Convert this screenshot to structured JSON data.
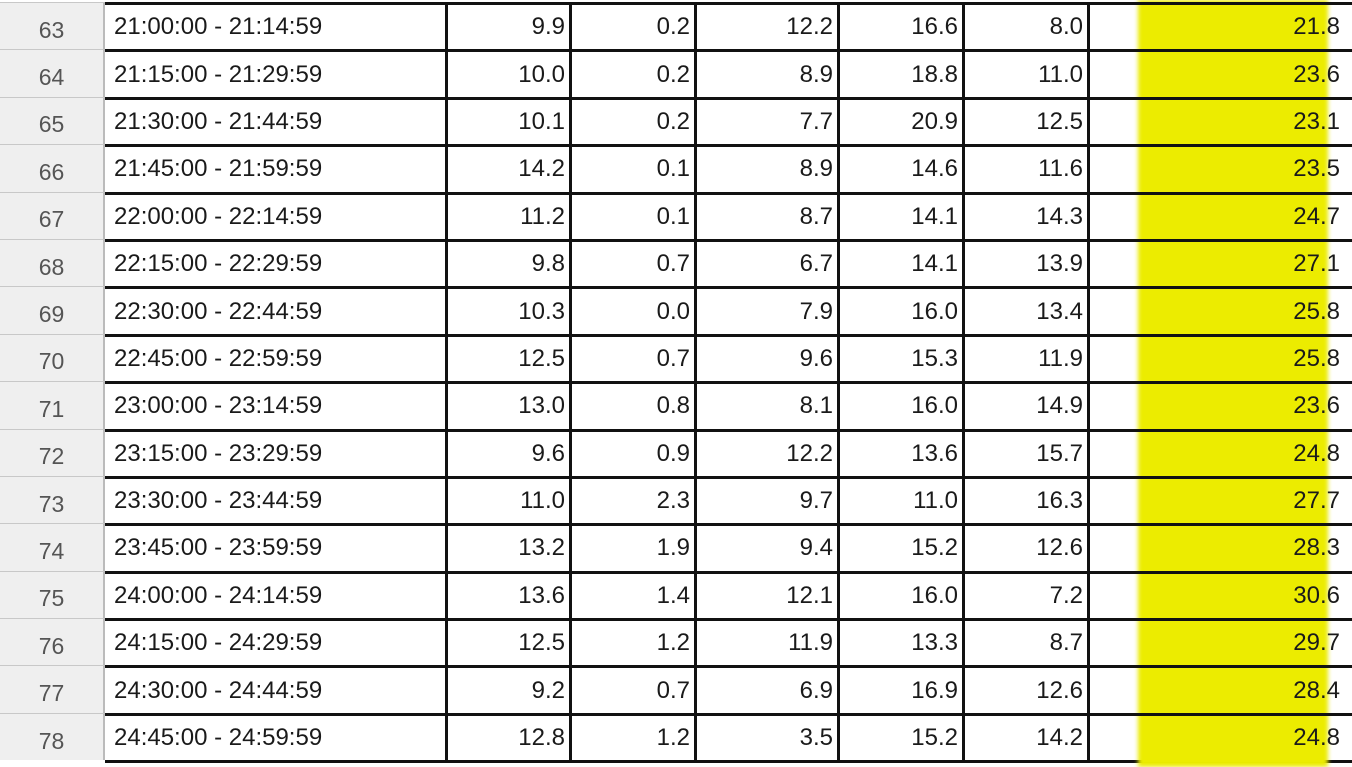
{
  "highlight_color": "#ecec00",
  "highlighted_column": 7,
  "rows": [
    {
      "num": "63",
      "time": "21:00:00 - 21:14:59",
      "v": [
        "9.9",
        "0.2",
        "12.2",
        "16.6",
        "8.0",
        "21.8"
      ]
    },
    {
      "num": "64",
      "time": "21:15:00 - 21:29:59",
      "v": [
        "10.0",
        "0.2",
        "8.9",
        "18.8",
        "11.0",
        "23.6"
      ]
    },
    {
      "num": "65",
      "time": "21:30:00 - 21:44:59",
      "v": [
        "10.1",
        "0.2",
        "7.7",
        "20.9",
        "12.5",
        "23.1"
      ]
    },
    {
      "num": "66",
      "time": "21:45:00 - 21:59:59",
      "v": [
        "14.2",
        "0.1",
        "8.9",
        "14.6",
        "11.6",
        "23.5"
      ]
    },
    {
      "num": "67",
      "time": "22:00:00 - 22:14:59",
      "v": [
        "11.2",
        "0.1",
        "8.7",
        "14.1",
        "14.3",
        "24.7"
      ]
    },
    {
      "num": "68",
      "time": "22:15:00 - 22:29:59",
      "v": [
        "9.8",
        "0.7",
        "6.7",
        "14.1",
        "13.9",
        "27.1"
      ]
    },
    {
      "num": "69",
      "time": "22:30:00 - 22:44:59",
      "v": [
        "10.3",
        "0.0",
        "7.9",
        "16.0",
        "13.4",
        "25.8"
      ]
    },
    {
      "num": "70",
      "time": "22:45:00 - 22:59:59",
      "v": [
        "12.5",
        "0.7",
        "9.6",
        "15.3",
        "11.9",
        "25.8"
      ]
    },
    {
      "num": "71",
      "time": "23:00:00 - 23:14:59",
      "v": [
        "13.0",
        "0.8",
        "8.1",
        "16.0",
        "14.9",
        "23.6"
      ]
    },
    {
      "num": "72",
      "time": "23:15:00 - 23:29:59",
      "v": [
        "9.6",
        "0.9",
        "12.2",
        "13.6",
        "15.7",
        "24.8"
      ]
    },
    {
      "num": "73",
      "time": "23:30:00 - 23:44:59",
      "v": [
        "11.0",
        "2.3",
        "9.7",
        "11.0",
        "16.3",
        "27.7"
      ]
    },
    {
      "num": "74",
      "time": "23:45:00 - 23:59:59",
      "v": [
        "13.2",
        "1.9",
        "9.4",
        "15.2",
        "12.6",
        "28.3"
      ]
    },
    {
      "num": "75",
      "time": "24:00:00 - 24:14:59",
      "v": [
        "13.6",
        "1.4",
        "12.1",
        "16.0",
        "7.2",
        "30.6"
      ]
    },
    {
      "num": "76",
      "time": "24:15:00 - 24:29:59",
      "v": [
        "12.5",
        "1.2",
        "11.9",
        "13.3",
        "8.7",
        "29.7"
      ]
    },
    {
      "num": "77",
      "time": "24:30:00 - 24:44:59",
      "v": [
        "9.2",
        "0.7",
        "6.9",
        "16.9",
        "12.6",
        "28.4"
      ]
    },
    {
      "num": "78",
      "time": "24:45:00 - 24:59:59",
      "v": [
        "12.8",
        "1.2",
        "3.5",
        "15.2",
        "14.2",
        "24.8"
      ]
    }
  ]
}
